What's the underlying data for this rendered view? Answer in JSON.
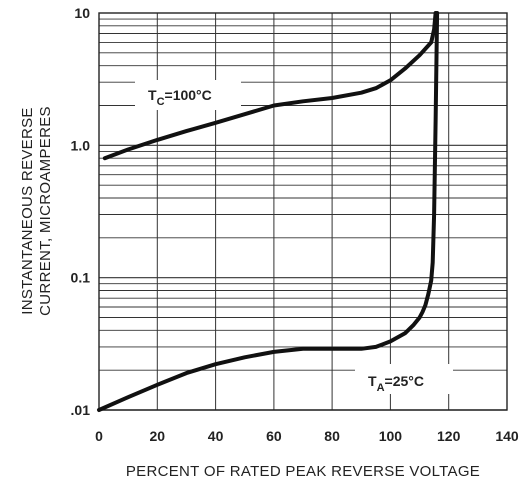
{
  "chart_data": {
    "type": "line",
    "title": "",
    "xlabel": "PERCENT OF RATED PEAK REVERSE VOLTAGE",
    "ylabel_lines": [
      "INSTANTANEOUS REVERSE",
      "CURRENT, MICROAMPERES"
    ],
    "xlim": [
      0,
      140
    ],
    "ylim": [
      0.01,
      10
    ],
    "yscale": "log",
    "grid": true,
    "x_ticks": [
      0,
      20,
      40,
      60,
      80,
      100,
      120,
      140
    ],
    "x_tick_labels": [
      "0",
      "20",
      "40",
      "60",
      "80",
      "100",
      "120",
      "140"
    ],
    "y_ticks": [
      0.01,
      0.1,
      1.0,
      10
    ],
    "y_tick_labels": [
      ".01",
      "0.1",
      "1.0",
      "10"
    ],
    "series": [
      {
        "label_main": "T",
        "label_sub": "C",
        "label_rest": "=100°C",
        "x": [
          2,
          10,
          20,
          30,
          40,
          50,
          60,
          70,
          80,
          90,
          95,
          100,
          105,
          110,
          114,
          115,
          115.5
        ],
        "y": [
          0.8,
          0.93,
          1.1,
          1.28,
          1.48,
          1.72,
          2.0,
          2.15,
          2.28,
          2.5,
          2.7,
          3.1,
          3.8,
          4.8,
          6.0,
          7.5,
          10
        ]
      },
      {
        "label_main": "T",
        "label_sub": "A",
        "label_rest": "=25°C",
        "x": [
          0,
          10,
          20,
          30,
          40,
          50,
          60,
          70,
          80,
          90,
          95,
          100,
          105,
          108,
          110,
          111,
          112,
          113,
          114,
          114.5,
          115,
          115.5,
          116
        ],
        "y": [
          0.01,
          0.0125,
          0.0155,
          0.019,
          0.0222,
          0.025,
          0.0275,
          0.029,
          0.029,
          0.029,
          0.03,
          0.033,
          0.038,
          0.044,
          0.05,
          0.055,
          0.062,
          0.075,
          0.095,
          0.13,
          0.3,
          1.5,
          10
        ]
      }
    ]
  }
}
